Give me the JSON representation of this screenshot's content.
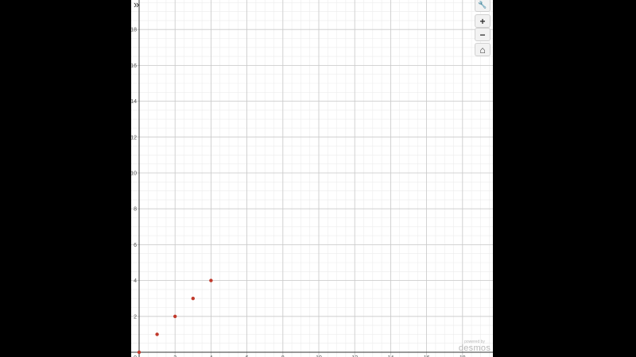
{
  "controls": {
    "expand_icon": "»",
    "settings_icon": "🔧",
    "zoom_in": "+",
    "zoom_out": "−",
    "home_icon": "⌂"
  },
  "branding": {
    "line1": "powered by",
    "line2": "desmos"
  },
  "chart_data": {
    "type": "scatter",
    "x": [
      0,
      1,
      2,
      3,
      4
    ],
    "y": [
      0,
      1,
      2,
      3,
      4
    ],
    "ylim": [
      0,
      19.5
    ],
    "xlim": [
      -0.4,
      19.6
    ],
    "y_tick_labels": [
      "2",
      "4",
      "6",
      "8",
      "10",
      "12",
      "14",
      "16",
      "18"
    ],
    "x_tick_labels": [
      "2",
      "4",
      "6",
      "8",
      "10",
      "12",
      "14",
      "16",
      "18"
    ],
    "grid": true,
    "point_color": "#c0392b"
  }
}
